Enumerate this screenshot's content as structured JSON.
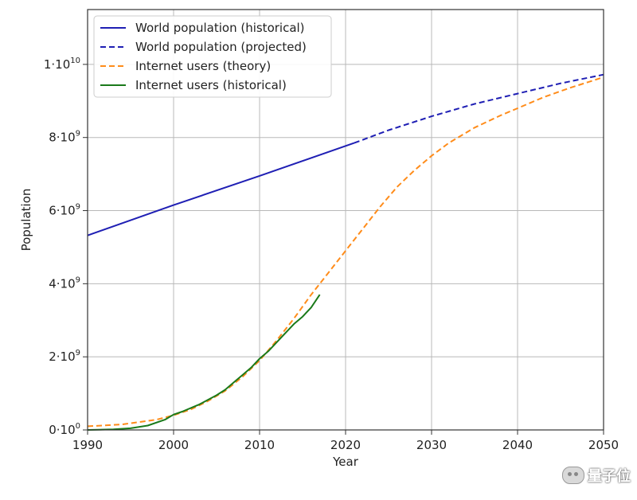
{
  "chart_data": {
    "type": "line",
    "xlabel": "Year",
    "ylabel": "Population",
    "xlim": [
      1990,
      2050
    ],
    "ylim": [
      0,
      11500000000
    ],
    "grid": true,
    "legend_position": "top-left",
    "x_ticks": [
      1990,
      2000,
      2010,
      2020,
      2030,
      2040,
      2050
    ],
    "y_ticks": [
      {
        "value": 0,
        "base": "0·10",
        "exp": "0"
      },
      {
        "value": 2000000000,
        "base": "2·10",
        "exp": "9"
      },
      {
        "value": 4000000000,
        "base": "4·10",
        "exp": "9"
      },
      {
        "value": 6000000000,
        "base": "6·10",
        "exp": "9"
      },
      {
        "value": 8000000000,
        "base": "8·10",
        "exp": "9"
      },
      {
        "value": 10000000000,
        "base": "1·10",
        "exp": "10"
      }
    ],
    "series": [
      {
        "name": "World population (historical)",
        "color": "#1f1fb4",
        "style": "solid",
        "x": [
          1990,
          2000,
          2010,
          2021
        ],
        "y": [
          5320000000,
          6150000000,
          6950000000,
          7850000000
        ]
      },
      {
        "name": "World population (projected)",
        "color": "#1f1fb4",
        "style": "dashed",
        "x": [
          2021,
          2025,
          2030,
          2035,
          2040,
          2045,
          2050
        ],
        "y": [
          7850000000,
          8200000000,
          8580000000,
          8920000000,
          9200000000,
          9480000000,
          9720000000
        ]
      },
      {
        "name": "Internet users (theory)",
        "color": "#ff8c1a",
        "style": "dashed",
        "x": [
          1990,
          1994,
          1998,
          2000,
          2002,
          2004,
          2006,
          2008,
          2010,
          2012,
          2014,
          2016,
          2018,
          2020,
          2022,
          2024,
          2026,
          2028,
          2030,
          2032,
          2035,
          2038,
          2040,
          2043,
          2046,
          2050
        ],
        "y": [
          100000000,
          150000000,
          280000000,
          400000000,
          560000000,
          790000000,
          1070000000,
          1450000000,
          1900000000,
          2450000000,
          3050000000,
          3700000000,
          4300000000,
          4900000000,
          5500000000,
          6100000000,
          6650000000,
          7100000000,
          7500000000,
          7850000000,
          8270000000,
          8600000000,
          8800000000,
          9100000000,
          9350000000,
          9650000000
        ]
      },
      {
        "name": "Internet users (historical)",
        "color": "#1a7a1a",
        "style": "solid",
        "x": [
          1990,
          1993,
          1995,
          1997,
          1999,
          2000,
          2001,
          2003,
          2005,
          2006,
          2007,
          2008,
          2009,
          2010,
          2011,
          2012,
          2013,
          2014,
          2015,
          2016,
          2017
        ],
        "y": [
          0,
          15000000,
          45000000,
          120000000,
          280000000,
          420000000,
          500000000,
          700000000,
          950000000,
          1100000000,
          1300000000,
          1500000000,
          1700000000,
          1950000000,
          2150000000,
          2400000000,
          2650000000,
          2900000000,
          3100000000,
          3350000000,
          3700000000
        ]
      }
    ]
  },
  "watermark": {
    "text": "量子位",
    "icon": "wechat-icon"
  }
}
